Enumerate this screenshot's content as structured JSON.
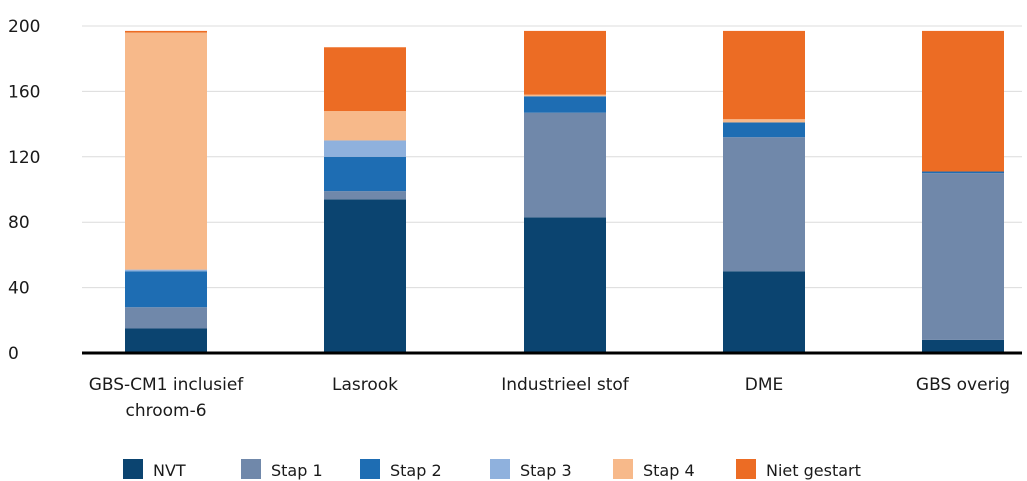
{
  "chart_data": {
    "type": "bar",
    "stacked": true,
    "categories": [
      [
        "GBS-CM1 inclusief",
        "chroom-6"
      ],
      [
        "Lasrook"
      ],
      [
        "Industrieel stof"
      ],
      [
        "DME"
      ],
      [
        "GBS overig"
      ]
    ],
    "series": [
      {
        "name": "NVT",
        "color": "#0b4470",
        "values": [
          15,
          94,
          83,
          50,
          8
        ]
      },
      {
        "name": "Stap 1",
        "color": "#7088aa",
        "values": [
          13,
          5,
          64,
          82,
          102
        ]
      },
      {
        "name": "Stap 2",
        "color": "#1e6db3",
        "values": [
          22,
          21,
          10,
          9,
          1
        ]
      },
      {
        "name": "Stap 3",
        "color": "#8fb1dd",
        "values": [
          1,
          10,
          0,
          0,
          0
        ]
      },
      {
        "name": "Stap 4",
        "color": "#f7b98a",
        "values": [
          145,
          18,
          1,
          2,
          0
        ]
      },
      {
        "name": "Niet gestart",
        "color": "#ec6c24",
        "values": [
          1,
          39,
          39,
          54,
          86
        ]
      }
    ],
    "ylim": [
      0,
      200
    ],
    "yticks": [
      0,
      40,
      80,
      120,
      160,
      200
    ],
    "grid": true,
    "legend_position": "bottom",
    "title": "",
    "xlabel": "",
    "ylabel": ""
  }
}
